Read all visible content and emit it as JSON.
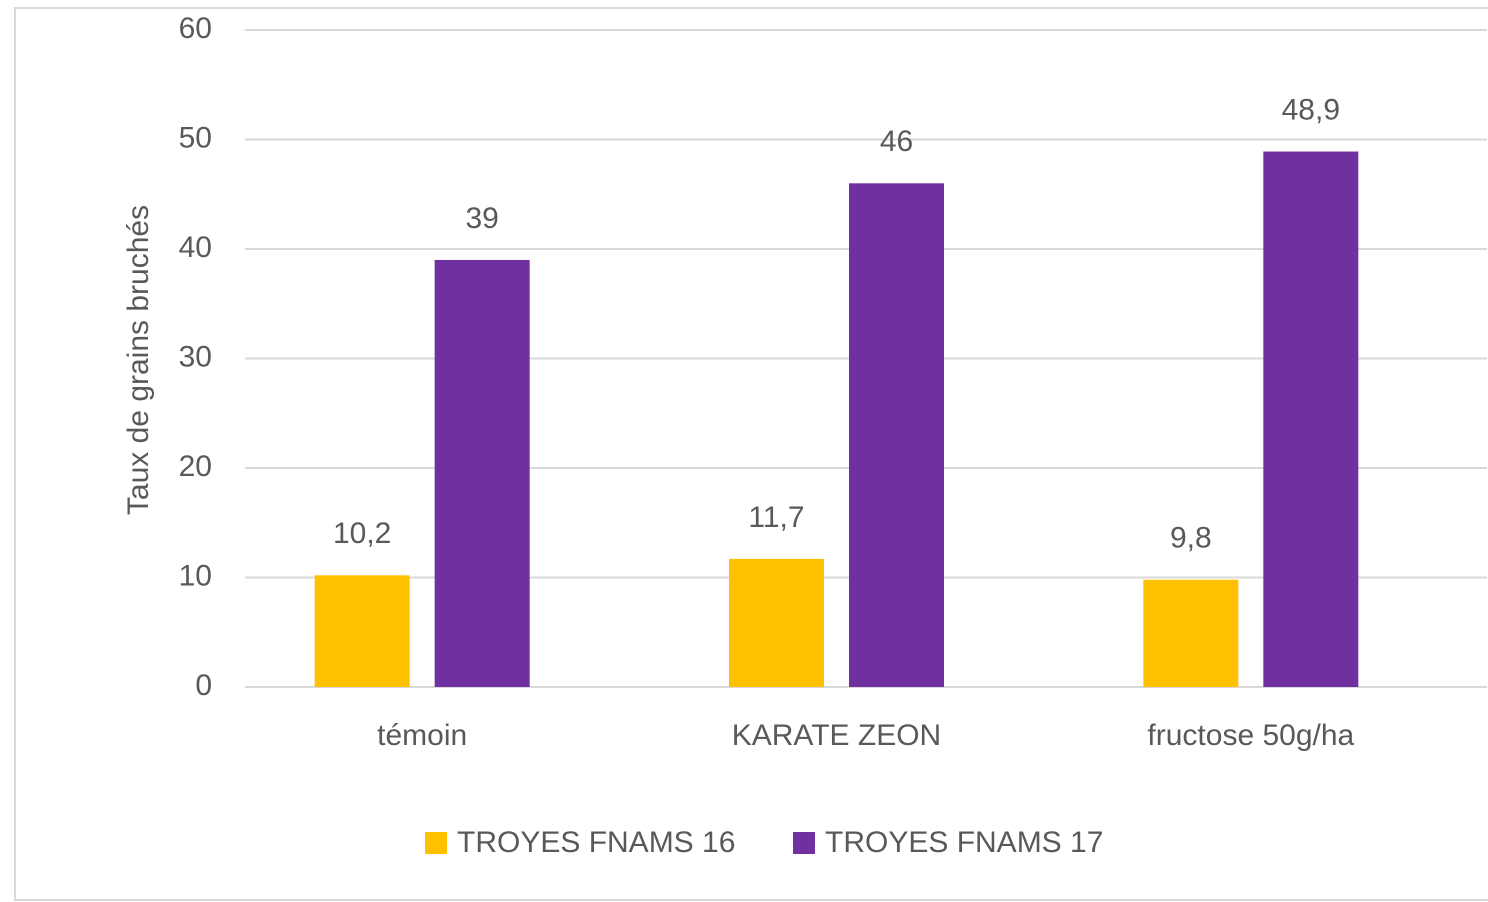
{
  "chart_data": {
    "type": "bar",
    "y_label": "Taux de grains bruchés",
    "categories": [
      "témoin",
      "KARATE ZEON",
      "fructose 50g/ha"
    ],
    "series": [
      {
        "name": "TROYES FNAMS 16",
        "color": "#ffc000",
        "values": [
          10.2,
          11.7,
          9.8
        ],
        "value_labels": [
          "10,2",
          "11,7",
          "9,8"
        ]
      },
      {
        "name": "TROYES FNAMS 17",
        "color": "#7030a0",
        "values": [
          39,
          46,
          48.9
        ],
        "value_labels": [
          "39",
          "46",
          "48,9"
        ]
      }
    ],
    "ylim": [
      0,
      60
    ],
    "yticks": [
      0,
      10,
      20,
      30,
      40,
      50,
      60
    ],
    "grid": true,
    "legend": "bottom"
  }
}
